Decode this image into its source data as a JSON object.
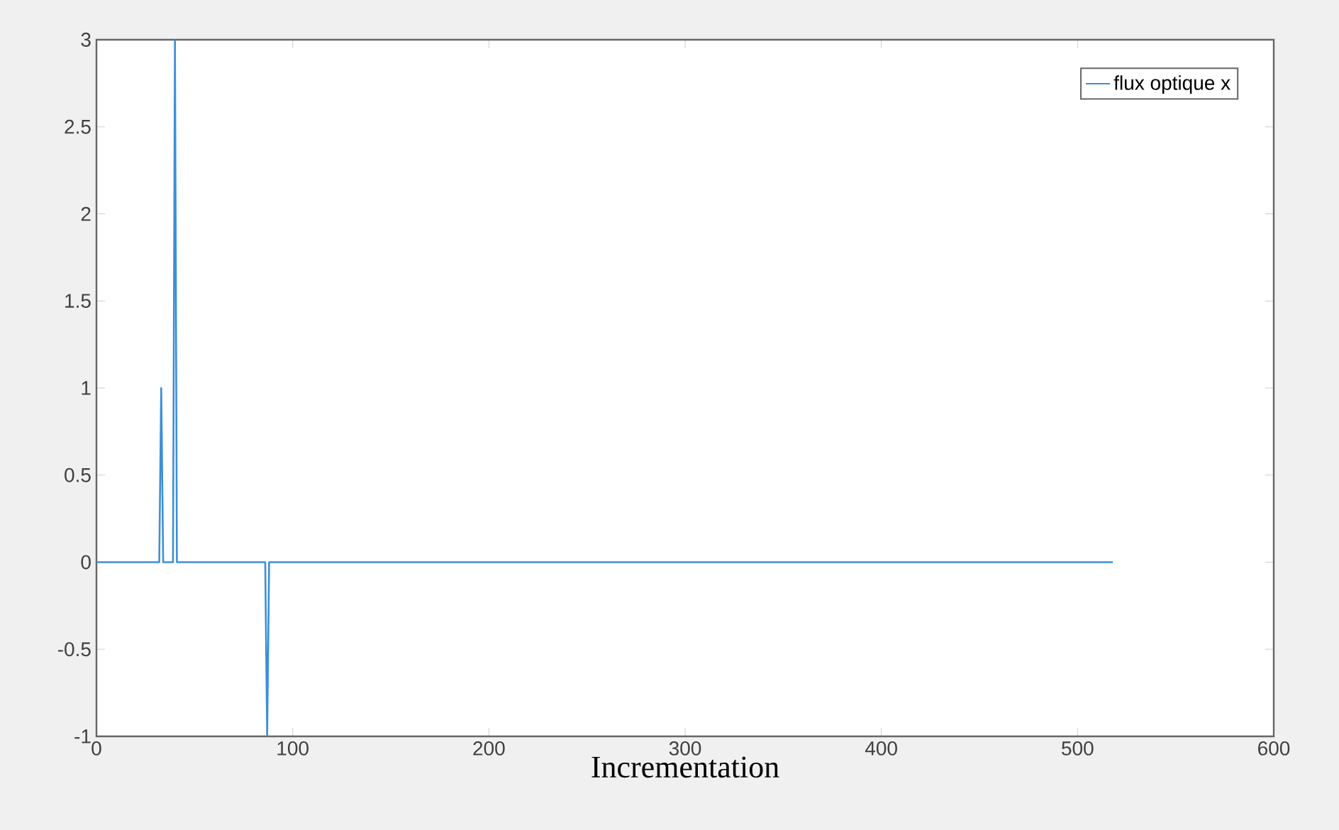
{
  "chart_data": {
    "type": "line",
    "xlabel": "Incrementation",
    "x": [
      0,
      32,
      33,
      34,
      39,
      40,
      41,
      86,
      87,
      88,
      518
    ],
    "series": [
      {
        "name": "flux optique x",
        "color": "#3d8fd6",
        "values": [
          0,
          0,
          1,
          0,
          0,
          3,
          0,
          0,
          -1,
          0,
          0
        ]
      }
    ],
    "xlim": [
      0,
      600
    ],
    "ylim": [
      -1,
      3
    ],
    "xticks": [
      0,
      100,
      200,
      300,
      400,
      500,
      600
    ],
    "yticks": [
      -1,
      -0.5,
      0,
      0.5,
      1,
      1.5,
      2,
      2.5,
      3
    ],
    "legend": "top right",
    "grid": false,
    "marker": "none",
    "line_style": "solid"
  }
}
